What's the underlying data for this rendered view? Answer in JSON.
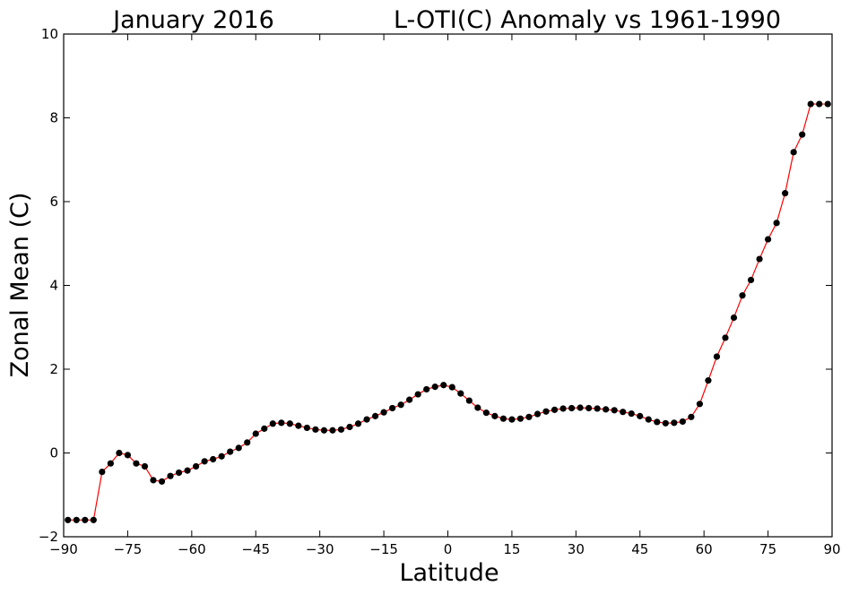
{
  "chart_data": {
    "type": "line",
    "title_left": "January 2016",
    "title_right": "L-OTI(C) Anomaly vs 1961-1990",
    "xlabel": "Latitude",
    "ylabel": "Zonal Mean (C)",
    "xlim": [
      -90,
      90
    ],
    "ylim": [
      -2,
      10
    ],
    "xticks": [
      -90,
      -75,
      -60,
      -45,
      -30,
      -15,
      0,
      15,
      30,
      45,
      60,
      75,
      90
    ],
    "xtick_labels": [
      "−90",
      "−75",
      "−60",
      "−45",
      "−30",
      "−15",
      "0",
      "15",
      "30",
      "45",
      "60",
      "75",
      "90"
    ],
    "yticks": [
      -2,
      0,
      2,
      4,
      6,
      8,
      10
    ],
    "ytick_labels": [
      "−2",
      "0",
      "2",
      "4",
      "6",
      "8",
      "10"
    ],
    "grid": false,
    "line_color": "#ff0000",
    "marker_color": "#000000",
    "series": [
      {
        "x": [
          -89,
          -87,
          -85,
          -83,
          -81,
          -79,
          -77,
          -75,
          -73,
          -71,
          -69,
          -67,
          -65,
          -63,
          -61,
          -59,
          -57,
          -55,
          -53,
          -51,
          -49,
          -47,
          -45,
          -43,
          -41,
          -39,
          -37,
          -35,
          -33,
          -31,
          -29,
          -27,
          -25,
          -23,
          -21,
          -19,
          -17,
          -15,
          -13,
          -11,
          -9,
          -7,
          -5,
          -3,
          -1,
          1,
          3,
          5,
          7,
          9,
          11,
          13,
          15,
          17,
          19,
          21,
          23,
          25,
          27,
          29,
          31,
          33,
          35,
          37,
          39,
          41,
          43,
          45,
          47,
          49,
          51,
          53,
          55,
          57,
          59,
          61,
          63,
          65,
          67,
          69,
          71,
          73,
          75,
          77,
          79,
          81,
          83,
          85,
          87,
          89
        ],
        "y": [
          -1.6,
          -1.6,
          -1.6,
          -1.6,
          -0.45,
          -0.25,
          0.0,
          -0.05,
          -0.25,
          -0.32,
          -0.65,
          -0.68,
          -0.55,
          -0.47,
          -0.42,
          -0.32,
          -0.2,
          -0.15,
          -0.08,
          0.03,
          0.12,
          0.25,
          0.46,
          0.58,
          0.7,
          0.72,
          0.7,
          0.65,
          0.6,
          0.56,
          0.54,
          0.54,
          0.56,
          0.62,
          0.7,
          0.8,
          0.88,
          0.97,
          1.07,
          1.15,
          1.27,
          1.4,
          1.52,
          1.58,
          1.62,
          1.57,
          1.42,
          1.25,
          1.08,
          0.96,
          0.88,
          0.82,
          0.8,
          0.82,
          0.86,
          0.93,
          0.99,
          1.03,
          1.06,
          1.07,
          1.08,
          1.07,
          1.06,
          1.04,
          1.02,
          0.98,
          0.94,
          0.88,
          0.8,
          0.74,
          0.71,
          0.72,
          0.75,
          0.86,
          1.17,
          1.73,
          2.3,
          2.75,
          3.23,
          3.76,
          4.13,
          4.63,
          5.1,
          5.49,
          6.2,
          7.18,
          7.6,
          8.33,
          8.33,
          8.33
        ]
      }
    ]
  }
}
